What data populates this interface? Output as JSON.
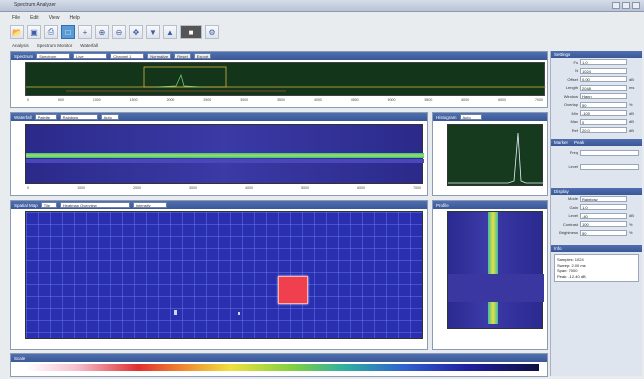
{
  "window": {
    "title": "Spectrum Analyzer"
  },
  "menu": [
    "File",
    "Edit",
    "View",
    "Help"
  ],
  "tabs": [
    "Analysis",
    "Spectrum Monitor",
    "Waterfall"
  ],
  "toolbar": {
    "icons": [
      "open-icon",
      "save-icon",
      "print-icon",
      "select-icon",
      "crosshair-icon",
      "zoom-in-icon",
      "zoom-out-icon",
      "pan-icon",
      "marker-icon",
      "peak-icon",
      "record-icon",
      "settings-icon"
    ]
  },
  "top_panel": {
    "title": "Spectrum",
    "field1": "Spectrum",
    "field2": "Live",
    "field3": "Channel 1",
    "btn1": "Normalize",
    "btn2": "Reset",
    "btn3": "Export"
  },
  "waterfall_panel": {
    "title": "Waterfall",
    "field1": "Palette",
    "field2": "Rainbow",
    "field3": "Auto"
  },
  "hist_panel": {
    "title": "Histogram",
    "field1": "Auto"
  },
  "heatmap_panel": {
    "title": "Spatial Map",
    "field1": "Tile",
    "field2": "Heatmap Overview",
    "field3": "Intensity"
  },
  "right_map_panel": {
    "title": "Profile"
  },
  "colorbar": {
    "title": "Scale"
  },
  "ticks": [
    "0",
    "500",
    "1000",
    "1500",
    "2000",
    "2500",
    "3000",
    "3500",
    "4000",
    "4500",
    "5000",
    "5500",
    "6000",
    "6500",
    "7000"
  ],
  "side": {
    "section1": "Settings",
    "rows1": [
      {
        "k": "Fs",
        "v": "1.0",
        "u": ""
      },
      {
        "k": "N",
        "v": "1024",
        "u": ""
      },
      {
        "k": "Offset",
        "v": "0.00",
        "u": "dB"
      },
      {
        "k": "Length",
        "v": "2048",
        "u": "ms"
      },
      {
        "k": "Window",
        "v": "Hann",
        "u": ""
      },
      {
        "k": "Overlap",
        "v": "50",
        "u": "%"
      },
      {
        "k": "Min",
        "v": "-100",
        "u": "dB"
      },
      {
        "k": "Max",
        "v": "0",
        "u": "dB"
      },
      {
        "k": "Ref",
        "v": "20.0",
        "u": "dB"
      }
    ],
    "section2_tabs": [
      "Marker",
      "Peak"
    ],
    "rows2": [
      {
        "k": "Freq",
        "v": "",
        "u": ""
      },
      {
        "k": "Level",
        "v": "",
        "u": ""
      }
    ],
    "section3": "Display",
    "rows3": [
      {
        "k": "Mode",
        "v": "Rainbow",
        "u": ""
      },
      {
        "k": "Gain",
        "v": "1.0",
        "u": ""
      },
      {
        "k": "Level",
        "v": "-40",
        "u": "dB"
      },
      {
        "k": "Contrast",
        "v": "100",
        "u": "%"
      },
      {
        "k": "Brightness",
        "v": "50",
        "u": "%"
      }
    ],
    "section4": "Info",
    "info_lines": [
      "Samples: 1024",
      "Sweep: 2.00 ms",
      "Span: 7000",
      "Peak: -12.40 dB"
    ]
  }
}
